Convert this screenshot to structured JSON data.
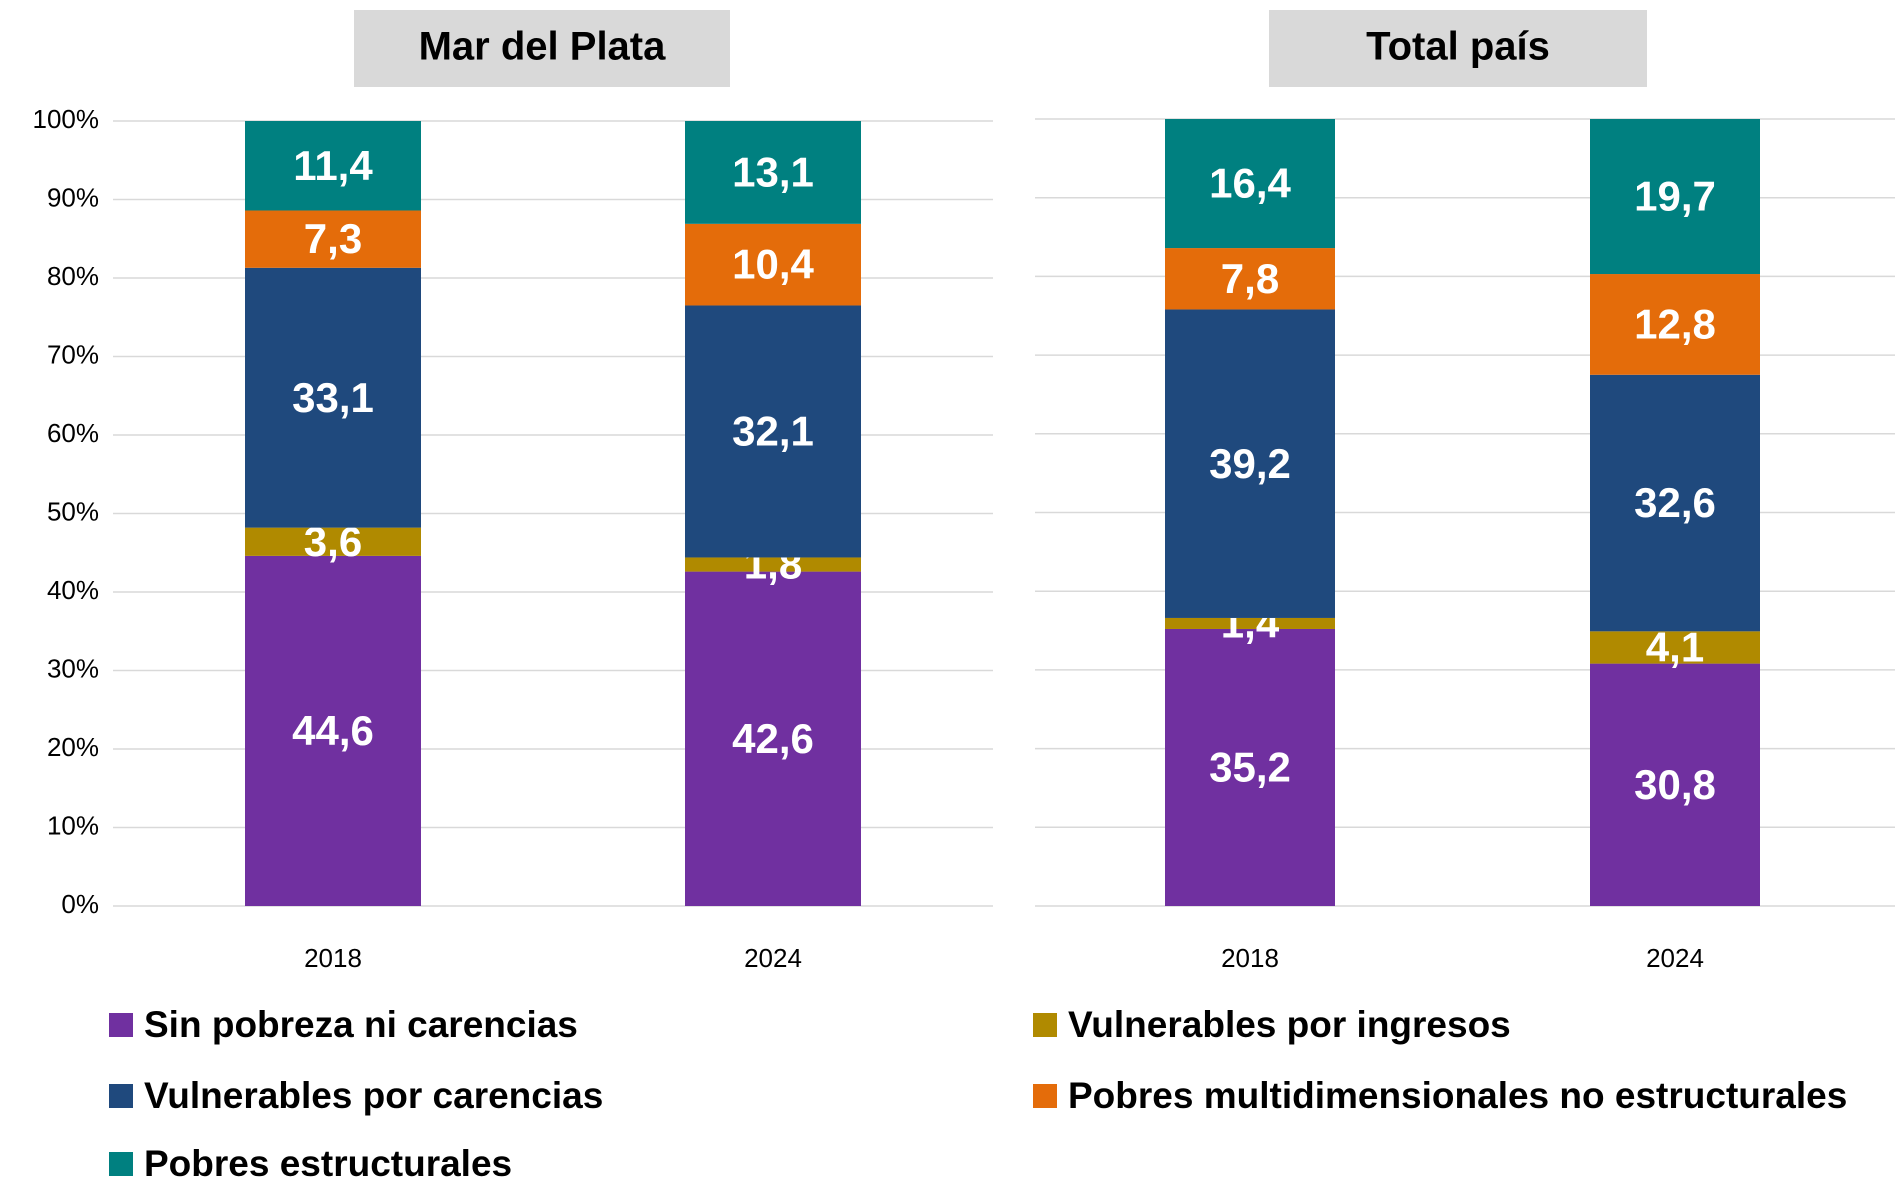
{
  "chart_data": [
    {
      "type": "stacked_bar",
      "title": "Mar del Plata",
      "categories": [
        "2018",
        "2024"
      ],
      "series": [
        {
          "name": "Sin pobreza ni carencias",
          "color": "#7030a0",
          "values": [
            44.6,
            42.6
          ],
          "value_labels": [
            "44,6",
            "42,6"
          ]
        },
        {
          "name": "Vulnerables por ingresos",
          "color": "#b08a00",
          "values": [
            3.6,
            1.8
          ],
          "value_labels": [
            "3,6",
            "1,8"
          ]
        },
        {
          "name": "Vulnerables por carencias",
          "color": "#1f497d",
          "values": [
            33.1,
            32.1
          ],
          "value_labels": [
            "33,1",
            "32,1"
          ]
        },
        {
          "name": "Pobres multidimensionales no estructurales",
          "color": "#e46c0a",
          "values": [
            7.3,
            10.4
          ],
          "value_labels": [
            "7,3",
            "10,4"
          ]
        },
        {
          "name": "Pobres estructurales",
          "color": "#008080",
          "values": [
            11.4,
            13.1
          ],
          "value_labels": [
            "11,4",
            "13,1"
          ]
        }
      ],
      "ylim": [
        0,
        100
      ],
      "yticks": [
        {
          "value": 0,
          "label": "0%"
        },
        {
          "value": 10,
          "label": "10%"
        },
        {
          "value": 20,
          "label": "20%"
        },
        {
          "value": 30,
          "label": "30%"
        },
        {
          "value": 40,
          "label": "40%"
        },
        {
          "value": 50,
          "label": "50%"
        },
        {
          "value": 60,
          "label": "60%"
        },
        {
          "value": 70,
          "label": "70%"
        },
        {
          "value": 80,
          "label": "80%"
        },
        {
          "value": 90,
          "label": "90%"
        },
        {
          "value": 100,
          "label": "100%"
        }
      ],
      "grid": true
    },
    {
      "type": "stacked_bar",
      "title": "Total país",
      "categories": [
        "2018",
        "2024"
      ],
      "series": [
        {
          "color": "#7030a0",
          "values": [
            35.2,
            30.8
          ],
          "value_labels": [
            "35,2",
            "30,8"
          ]
        },
        {
          "color": "#b08a00",
          "values": [
            1.4,
            4.1
          ],
          "value_labels": [
            "1,4",
            "4,1"
          ]
        },
        {
          "color": "#1f497d",
          "values": [
            39.2,
            32.6
          ],
          "value_labels": [
            "39,2",
            "32,6"
          ]
        },
        {
          "color": "#e46c0a",
          "values": [
            7.8,
            12.8
          ],
          "value_labels": [
            "7,8",
            "12,8"
          ]
        },
        {
          "color": "#008080",
          "values": [
            16.4,
            19.7
          ],
          "value_labels": [
            "16,4",
            "19,7"
          ]
        }
      ],
      "ylim": [
        0,
        100
      ],
      "yticks": [
        0,
        10,
        20,
        30,
        40,
        50,
        60,
        70,
        80,
        90,
        100
      ],
      "grid": true
    }
  ]
}
